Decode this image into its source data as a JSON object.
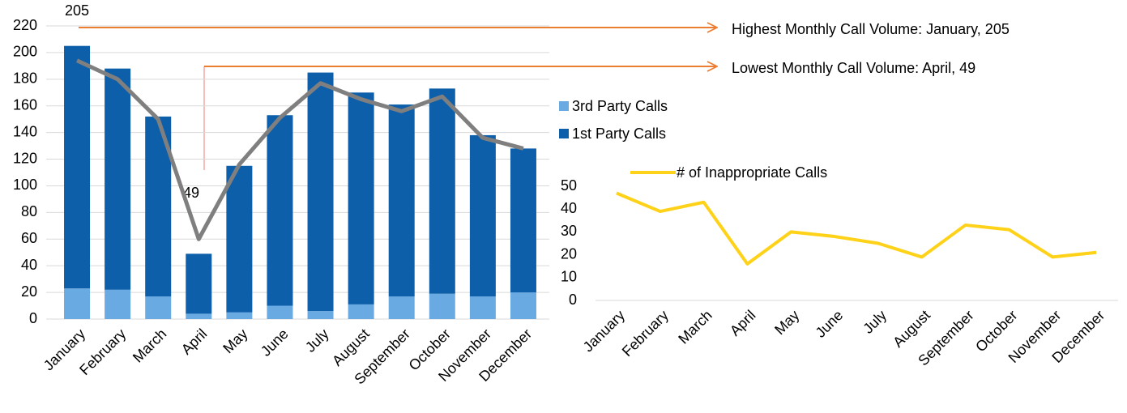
{
  "chart_data": [
    {
      "type": "stacked_bar",
      "categories": [
        "January",
        "February",
        "March",
        "April",
        "May",
        "June",
        "July",
        "August",
        "September",
        "October",
        "November",
        "December"
      ],
      "series": [
        {
          "name": "3rd Party Calls",
          "color": "#6aaae2",
          "values": [
            23,
            22,
            17,
            4,
            5,
            10,
            6,
            11,
            17,
            19,
            17,
            20
          ]
        },
        {
          "name": "1st Party Calls",
          "color": "#0d5faa",
          "values": [
            182,
            166,
            135,
            45,
            110,
            143,
            179,
            159,
            144,
            154,
            121,
            108
          ]
        }
      ],
      "overlay_line": {
        "color": "#7f7f7f",
        "values": [
          194,
          180,
          150,
          60,
          116,
          151,
          177,
          165,
          156,
          167,
          136,
          128
        ]
      },
      "ylim": [
        0,
        220
      ],
      "yticks": [
        0,
        20,
        40,
        60,
        80,
        100,
        120,
        140,
        160,
        180,
        200,
        220
      ],
      "grid": true,
      "annotations": [
        "205",
        "Highest Monthly Call Volume: January, 205",
        "49",
        "Lowest Monthly Call Volume: April, 49"
      ]
    },
    {
      "type": "line",
      "categories": [
        "January",
        "February",
        "March",
        "April",
        "May",
        "June",
        "July",
        "August",
        "September",
        "October",
        "November",
        "December"
      ],
      "series": [
        {
          "name": "# of Inappropriate Calls",
          "color": "#ffd21a",
          "values": [
            47,
            39,
            43,
            16,
            30,
            28,
            25,
            19,
            33,
            31,
            19,
            21
          ]
        }
      ],
      "ylim": [
        0,
        50
      ],
      "yticks": [
        0,
        10,
        20,
        30,
        40,
        50
      ],
      "grid": false
    }
  ]
}
